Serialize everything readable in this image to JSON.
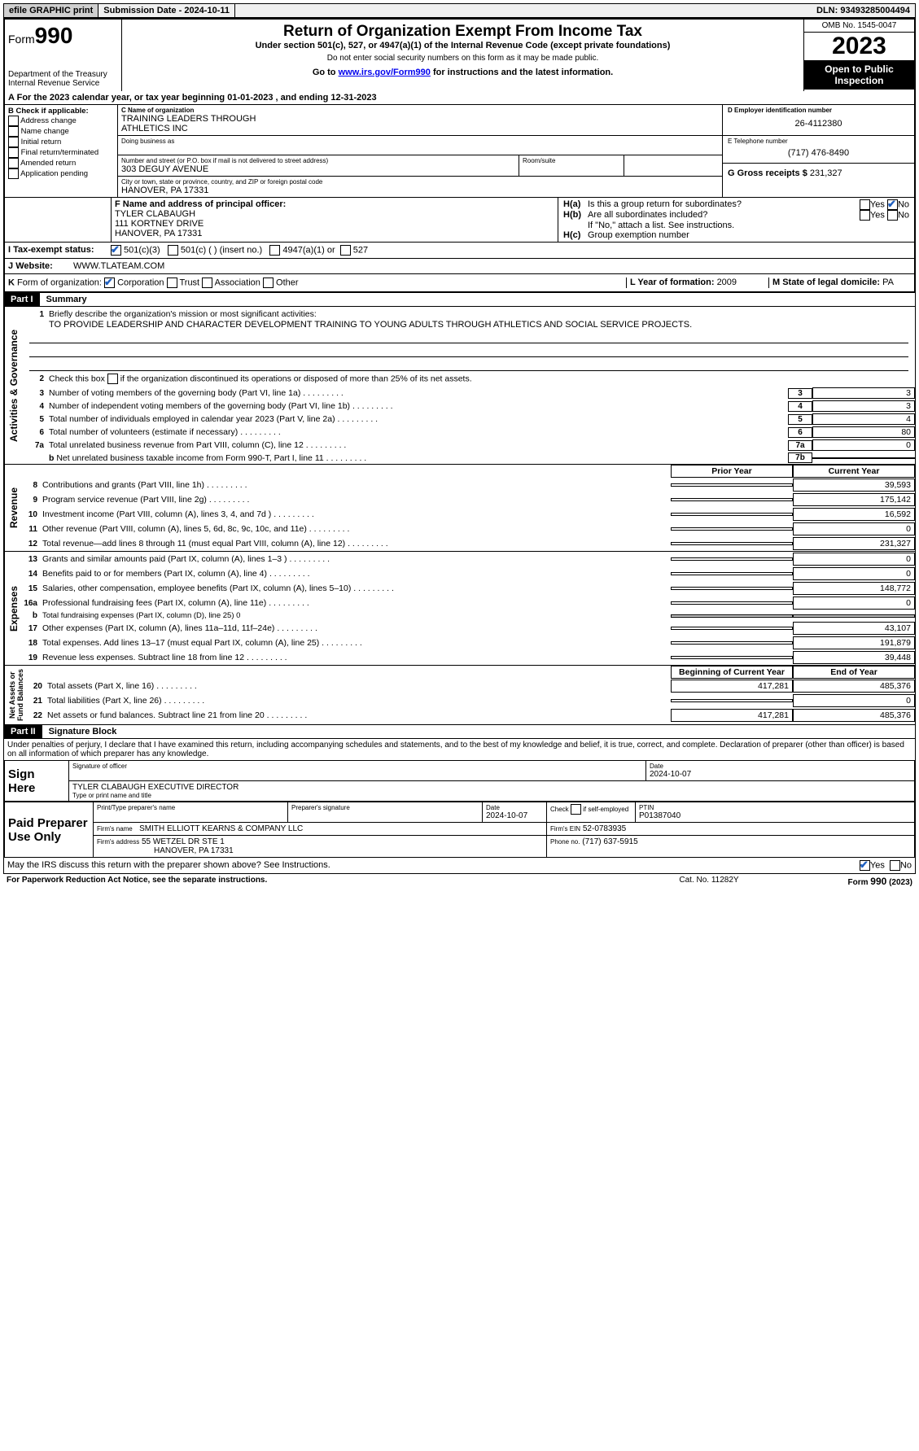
{
  "topbar": {
    "efile": "efile GRAPHIC print",
    "subdate_label": "Submission Date - ",
    "subdate": "2024-10-11",
    "dln_label": "DLN: ",
    "dln": "93493285004494"
  },
  "header": {
    "form_label": "Form",
    "form_num": "990",
    "dept": "Department of the Treasury\nInternal Revenue Service",
    "title": "Return of Organization Exempt From Income Tax",
    "subtitle": "Under section 501(c), 527, or 4947(a)(1) of the Internal Revenue Code (except private foundations)",
    "warn": "Do not enter social security numbers on this form as it may be made public.",
    "goto": "Go to ",
    "goto_url": "www.irs.gov/Form990",
    "goto_tail": " for instructions and the latest information.",
    "omb": "OMB No. 1545-0047",
    "year": "2023",
    "inspect": "Open to Public Inspection"
  },
  "periodA": {
    "label": "For the 2023 calendar year, or tax year beginning ",
    "begin": "01-01-2023",
    "mid": " , and ending ",
    "end": "12-31-2023"
  },
  "boxB": {
    "label": "B Check if applicable:",
    "items": [
      "Address change",
      "Name change",
      "Initial return",
      "Final return/terminated",
      "Amended return",
      "Application pending"
    ]
  },
  "boxC": {
    "name_label": "C Name of organization",
    "name": "TRAINING LEADERS THROUGH\nATHLETICS INC",
    "dba_label": "Doing business as",
    "addr_label": "Number and street (or P.O. box if mail is not delivered to street address)",
    "addr": "303 DEGUY AVENUE",
    "room_label": "Room/suite",
    "city_label": "City or town, state or province, country, and ZIP or foreign postal code",
    "city": "HANOVER, PA  17331"
  },
  "boxD": {
    "label": "D Employer identification number",
    "val": "26-4112380"
  },
  "boxE": {
    "label": "E Telephone number",
    "val": "(717) 476-8490"
  },
  "boxG": {
    "label": "G Gross receipts $ ",
    "val": "231,327"
  },
  "boxF": {
    "label": "F Name and address of principal officer:",
    "lines": [
      "TYLER CLABAUGH",
      "111 KORTNEY DRIVE",
      "HANOVER, PA  17331"
    ]
  },
  "boxH": {
    "a": "Is this a group return for subordinates?",
    "b": "Are all subordinates included?",
    "b_note": "If \"No,\" attach a list. See instructions.",
    "c": "Group exemption number",
    "yes": "Yes",
    "no": "No",
    "ha_yes": false,
    "ha_no": true,
    "hb_yes": false,
    "hb_no": false
  },
  "taxexempt": {
    "label": "Tax-exempt status:",
    "c3": true,
    "c_other_label": "501(c) (  ) (insert no.)",
    "a1": "4947(a)(1) or",
    "s527": "527"
  },
  "boxJ": {
    "label": "Website:",
    "val": "WWW.TLATEAM.COM"
  },
  "boxK": {
    "label": "Form of organization:",
    "corp": "Corporation",
    "trust": "Trust",
    "assoc": "Association",
    "other": "Other",
    "corp_checked": true
  },
  "boxL": {
    "label": "L Year of formation: ",
    "val": "2009"
  },
  "boxM": {
    "label": "M State of legal domicile: ",
    "val": "PA"
  },
  "part1": {
    "num": "Part I",
    "title": "Summary"
  },
  "briefly": {
    "label": "Briefly describe the organization's mission or most significant activities:",
    "text": "TO PROVIDE LEADERSHIP AND CHARACTER DEVELOPMENT TRAINING TO YOUNG ADULTS THROUGH ATHLETICS AND SOCIAL SERVICE PROJECTS."
  },
  "line2": "Check this box      if the organization discontinued its operations or disposed of more than 25% of its net assets.",
  "lines_ag": [
    {
      "n": "3",
      "d": "Number of voting members of the governing body (Part VI, line 1a)",
      "box": "3",
      "amt": "3"
    },
    {
      "n": "4",
      "d": "Number of independent voting members of the governing body (Part VI, line 1b)",
      "box": "4",
      "amt": "3"
    },
    {
      "n": "5",
      "d": "Total number of individuals employed in calendar year 2023 (Part V, line 2a)",
      "box": "5",
      "amt": "4"
    },
    {
      "n": "6",
      "d": "Total number of volunteers (estimate if necessary)",
      "box": "6",
      "amt": "80"
    },
    {
      "n": "7a",
      "d": "Total unrelated business revenue from Part VIII, column (C), line 12",
      "box": "7a",
      "amt": "0"
    },
    {
      "n": "",
      "sub": "b",
      "d": "Net unrelated business taxable income from Form 990-T, Part I, line 11",
      "box": "7b",
      "amt": ""
    }
  ],
  "col_hdr": {
    "prior": "Prior Year",
    "curr": "Current Year",
    "begin": "Beginning of Current Year",
    "end": "End of Year"
  },
  "rev": [
    {
      "n": "8",
      "d": "Contributions and grants (Part VIII, line 1h)",
      "p": "",
      "c": "39,593"
    },
    {
      "n": "9",
      "d": "Program service revenue (Part VIII, line 2g)",
      "p": "",
      "c": "175,142"
    },
    {
      "n": "10",
      "d": "Investment income (Part VIII, column (A), lines 3, 4, and 7d )",
      "p": "",
      "c": "16,592"
    },
    {
      "n": "11",
      "d": "Other revenue (Part VIII, column (A), lines 5, 6d, 8c, 9c, 10c, and 11e)",
      "p": "",
      "c": "0"
    },
    {
      "n": "12",
      "d": "Total revenue—add lines 8 through 11 (must equal Part VIII, column (A), line 12)",
      "p": "",
      "c": "231,327"
    }
  ],
  "exp": [
    {
      "n": "13",
      "d": "Grants and similar amounts paid (Part IX, column (A), lines 1–3 )",
      "p": "",
      "c": "0"
    },
    {
      "n": "14",
      "d": "Benefits paid to or for members (Part IX, column (A), line 4)",
      "p": "",
      "c": "0"
    },
    {
      "n": "15",
      "d": "Salaries, other compensation, employee benefits (Part IX, column (A), lines 5–10)",
      "p": "",
      "c": "148,772"
    },
    {
      "n": "16a",
      "d": "Professional fundraising fees (Part IX, column (A), line 11e)",
      "p": "",
      "c": "0"
    },
    {
      "n": "b",
      "d": "Total fundraising expenses (Part IX, column (D), line 25) 0",
      "p": "grey",
      "c": "grey",
      "small": true
    },
    {
      "n": "17",
      "d": "Other expenses (Part IX, column (A), lines 11a–11d, 11f–24e)",
      "p": "",
      "c": "43,107"
    },
    {
      "n": "18",
      "d": "Total expenses. Add lines 13–17 (must equal Part IX, column (A), line 25)",
      "p": "",
      "c": "191,879"
    },
    {
      "n": "19",
      "d": "Revenue less expenses. Subtract line 18 from line 12",
      "p": "",
      "c": "39,448"
    }
  ],
  "na": [
    {
      "n": "20",
      "d": "Total assets (Part X, line 16)",
      "p": "417,281",
      "c": "485,376"
    },
    {
      "n": "21",
      "d": "Total liabilities (Part X, line 26)",
      "p": "",
      "c": "0"
    },
    {
      "n": "22",
      "d": "Net assets or fund balances. Subtract line 21 from line 20",
      "p": "417,281",
      "c": "485,376"
    }
  ],
  "vert": {
    "ag": "Activities & Governance",
    "rev": "Revenue",
    "exp": "Expenses",
    "na": "Net Assets or\nFund Balances"
  },
  "part2": {
    "num": "Part II",
    "title": "Signature Block"
  },
  "perjury": "Under penalties of perjury, I declare that I have examined this return, including accompanying schedules and statements, and to the best of my knowledge and belief, it is true, correct, and complete. Declaration of preparer (other than officer) is based on all information of which preparer has any knowledge.",
  "sign": {
    "here": "Sign Here",
    "sig_label": "Signature of officer",
    "date_label": "Date",
    "date": "2024-10-07",
    "name": "TYLER CLABAUGH  EXECUTIVE DIRECTOR",
    "type_label": "Type or print name and title"
  },
  "paid": {
    "label": "Paid Preparer Use Only",
    "pname_label": "Print/Type preparer's name",
    "psig_label": "Preparer's signature",
    "pdate_label": "Date",
    "pdate": "2024-10-07",
    "check_label": "Check       if self-employed",
    "ptin_label": "PTIN",
    "ptin": "P01387040",
    "firm_label": "Firm's name",
    "firm": "SMITH ELLIOTT KEARNS & COMPANY LLC",
    "ein_label": "Firm's EIN",
    "ein": "52-0783935",
    "addr_label": "Firm's address",
    "addr1": "55 WETZEL DR STE 1",
    "addr2": "HANOVER, PA  17331",
    "phone_label": "Phone no.",
    "phone": "(717) 637-5915"
  },
  "discuss": {
    "q": "May the IRS discuss this return with the preparer shown above? See Instructions.",
    "yes": true,
    "no": false
  },
  "footer": {
    "pra": "For Paperwork Reduction Act Notice, see the separate instructions.",
    "cat": "Cat. No. 11282Y",
    "form": "Form 990 (2023)"
  }
}
